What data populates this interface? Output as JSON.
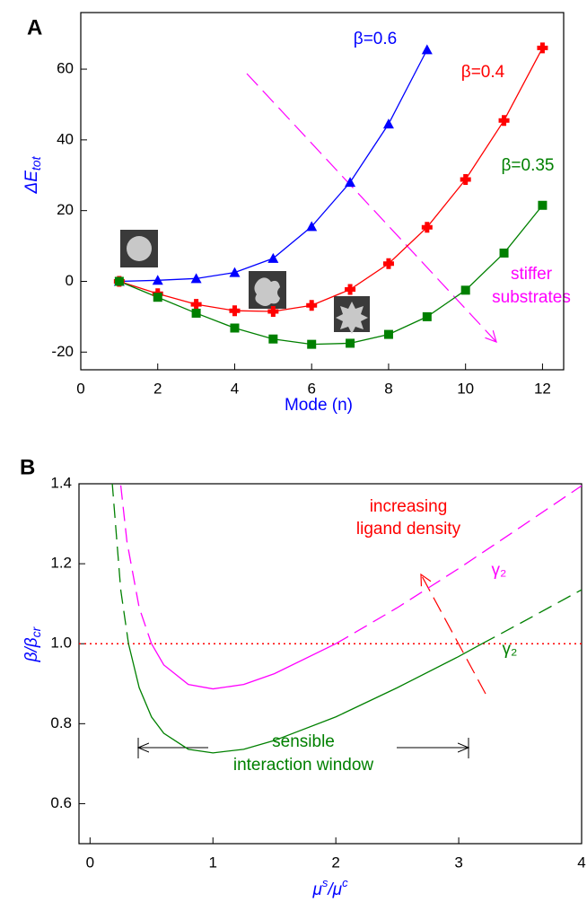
{
  "chart_data": [
    {
      "type": "line",
      "panel": "A",
      "xlabel": "Mode (n)",
      "ylabel": "ΔE",
      "ylabel_sub": "tot",
      "xlim": [
        0,
        12.55
      ],
      "ylim": [
        -25,
        76
      ],
      "xticks": [
        0,
        2,
        4,
        6,
        8,
        10,
        12
      ],
      "yticks": [
        -20,
        0,
        20,
        40,
        60
      ],
      "annotation": [
        "stiffer",
        "substrates"
      ],
      "series": [
        {
          "name": "β=0.6",
          "color": "#0000ff",
          "marker": "triangle",
          "x": [
            1,
            2,
            3,
            4,
            5,
            6,
            7,
            8,
            9
          ],
          "values": [
            0,
            0.3,
            0.8,
            2.5,
            6.5,
            15.5,
            28,
            44.5,
            65.5
          ]
        },
        {
          "name": "β=0.4",
          "color": "#ff0000",
          "marker": "plus",
          "x": [
            1,
            2,
            3,
            4,
            5,
            6,
            7,
            8,
            9,
            10,
            11,
            12
          ],
          "values": [
            0,
            -3.5,
            -6.5,
            -8.3,
            -8.5,
            -6.8,
            -2.3,
            5,
            15.3,
            28.8,
            45.5,
            66
          ]
        },
        {
          "name": "β=0.35",
          "color": "#008000",
          "marker": "square",
          "x": [
            1,
            2,
            3,
            4,
            5,
            6,
            7,
            8,
            9,
            10,
            11,
            12
          ],
          "values": [
            0,
            -4.5,
            -9,
            -13.2,
            -16.3,
            -17.8,
            -17.5,
            -15,
            -10,
            -2.5,
            8,
            21.5
          ]
        }
      ]
    },
    {
      "type": "line",
      "panel": "B",
      "xlabel": "μ",
      "xlabel_sup": "s",
      "xlabel_mid": "/μ",
      "xlabel_sup2": "c",
      "ylabel": "β/β",
      "ylabel_sub": "cr",
      "xlim": [
        -0.09,
        4
      ],
      "ylim": [
        0.5,
        1.4
      ],
      "xticks": [
        0,
        1,
        2,
        3,
        4
      ],
      "yticks": [
        0.6,
        0.8,
        {
          "value": 1.0,
          "label": "1.0"
        },
        1.2,
        1.4
      ],
      "hline": {
        "value": 1.0,
        "color": "#ff0000"
      },
      "annotation": [
        "increasing",
        "ligand density"
      ],
      "annotation2": [
        "sensible",
        "interaction window"
      ],
      "series": [
        {
          "name": "γ₂",
          "color": "#ff00ff",
          "x": [
            0.25,
            0.3,
            0.4,
            0.5,
            0.6,
            0.8,
            1,
            1.25,
            1.5,
            2,
            2.5,
            3,
            3.5,
            4
          ],
          "values": [
            1.396,
            1.256,
            1.09,
            1.0,
            0.947,
            0.898,
            0.887,
            0.898,
            0.925,
            1.0,
            1.09,
            1.188,
            1.291,
            1.395
          ],
          "solid": [
            false,
            false,
            false,
            true,
            true,
            true,
            true,
            true,
            true,
            true,
            false,
            false,
            false,
            false
          ]
        },
        {
          "name": "γ₂",
          "color": "#008000",
          "x": [
            0.18,
            0.25,
            0.313,
            0.4,
            0.5,
            0.6,
            0.8,
            1,
            1.25,
            1.5,
            2,
            2.5,
            3,
            3.19,
            3.5,
            4
          ],
          "values": [
            1.404,
            1.134,
            1.0,
            0.89,
            0.817,
            0.776,
            0.736,
            0.727,
            0.736,
            0.758,
            0.817,
            0.89,
            0.968,
            1.0,
            1.051,
            1.135
          ],
          "solid": [
            false,
            false,
            true,
            true,
            true,
            true,
            true,
            true,
            true,
            true,
            true,
            true,
            true,
            true,
            false,
            false
          ]
        }
      ]
    }
  ]
}
